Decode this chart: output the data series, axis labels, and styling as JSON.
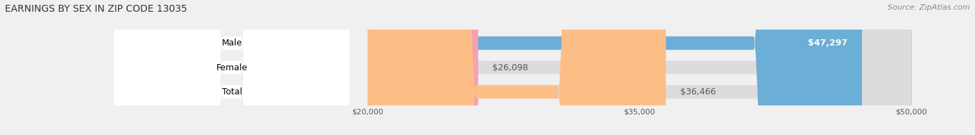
{
  "title": "EARNINGS BY SEX IN ZIP CODE 13035",
  "source": "Source: ZipAtlas.com",
  "categories": [
    "Male",
    "Female",
    "Total"
  ],
  "values": [
    47297,
    26098,
    36466
  ],
  "bar_colors": [
    "#6baed6",
    "#f4a0b5",
    "#fdbe85"
  ],
  "background_color": "#f0f0f0",
  "bar_bg_color": "#dcdcdc",
  "xmin": 20000,
  "xmax": 50000,
  "xticks": [
    20000,
    35000,
    50000
  ],
  "xtick_labels": [
    "$20,000",
    "$35,000",
    "$50,000"
  ],
  "title_fontsize": 10,
  "label_fontsize": 9,
  "value_fontsize": 9,
  "source_fontsize": 8
}
